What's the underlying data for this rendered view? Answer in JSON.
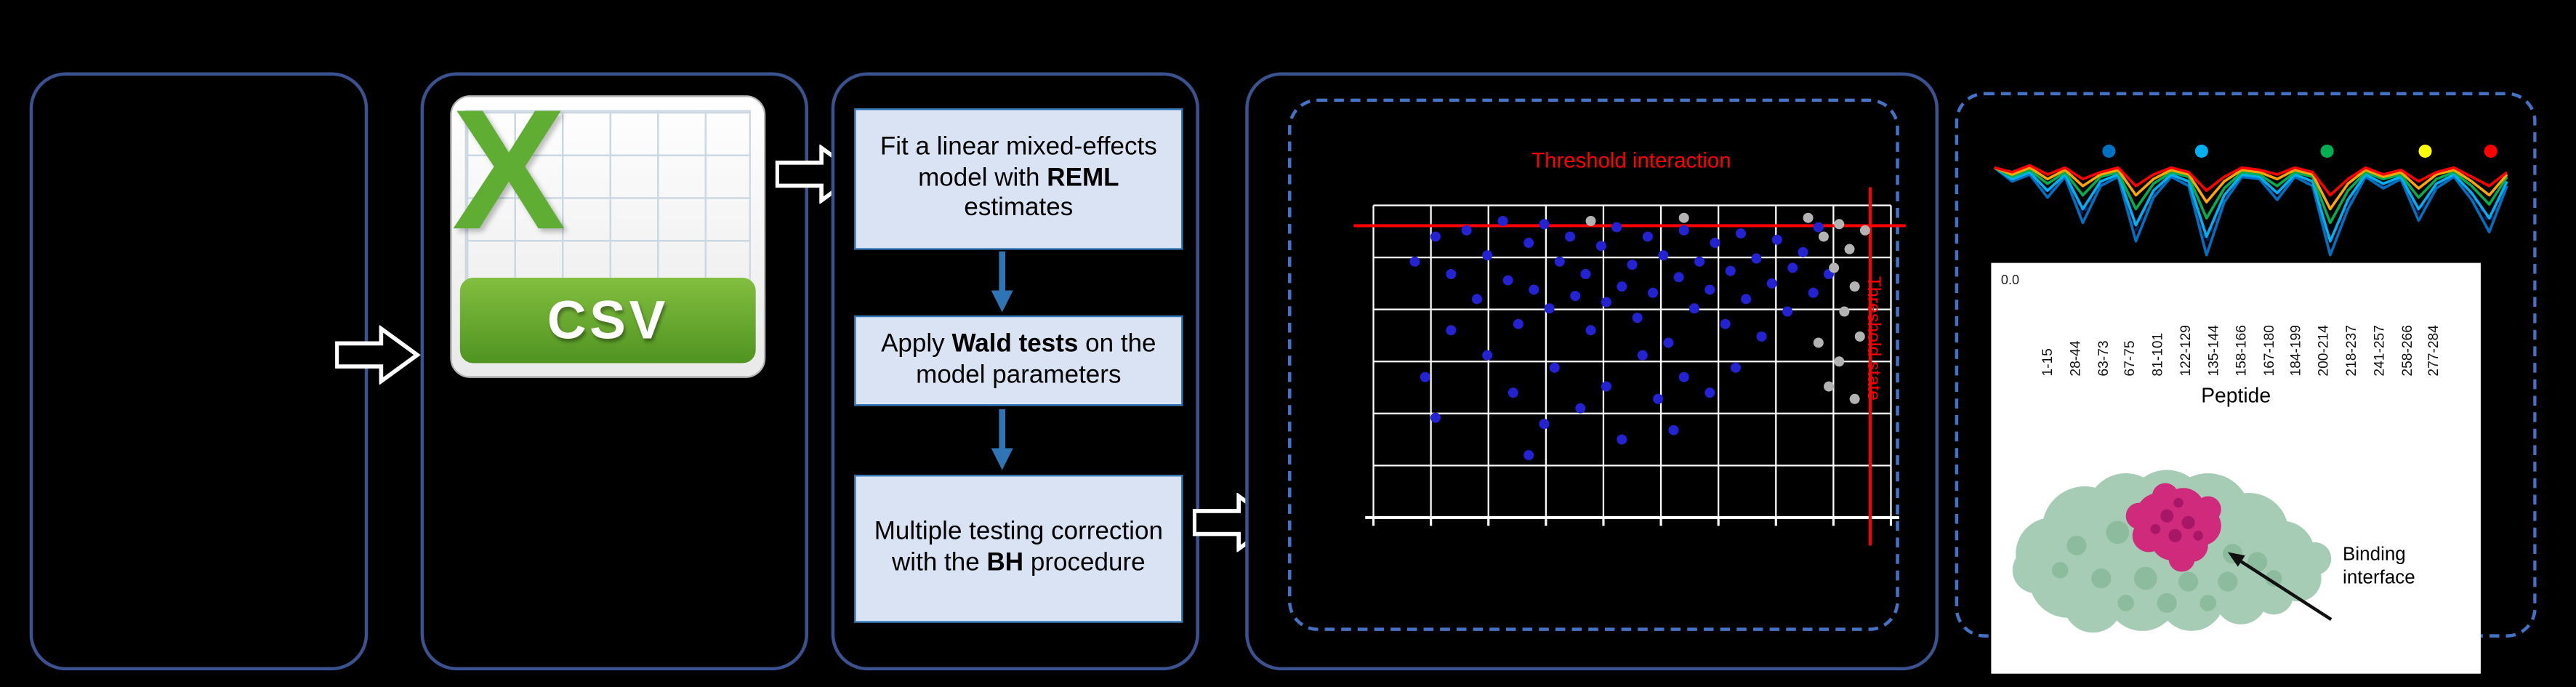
{
  "csv": {
    "letter": "X",
    "banner": "CSV"
  },
  "steps": {
    "box1": {
      "pre": "Fit a linear mixed-effects model with ",
      "bold": "REML",
      "post": " estimates"
    },
    "box2": {
      "pre": "Apply ",
      "bold": "Wald tests",
      "post": " on the model parameters"
    },
    "box3": {
      "pre": "Multiple testing correction with the ",
      "bold": "BH",
      "post": " procedure"
    }
  },
  "protein": {
    "annotation": "Binding interface"
  },
  "colors": {
    "panel_border": "#3a5390",
    "dashed_border": "#4472c4",
    "step_fill": "#dae3f3",
    "step_border": "#2e75b6",
    "threshold": "#ff0000",
    "significant_point": "#2323d4",
    "nonsignificant_point": "#b3b3b3"
  },
  "chart_data": [
    {
      "type": "scatter",
      "title": "Threshold interaction",
      "side_label": "Threshold state",
      "grid": {
        "cols": 10,
        "rows": 7,
        "grid_on": true
      },
      "thresholds": {
        "interaction_y": 0.065,
        "state_x": 0.96
      },
      "series": [
        {
          "name": "significant-peptides",
          "color": "#2323d4",
          "points": [
            [
              0.08,
              0.18
            ],
            [
              0.12,
              0.1
            ],
            [
              0.15,
              0.22
            ],
            [
              0.18,
              0.08
            ],
            [
              0.2,
              0.3
            ],
            [
              0.22,
              0.16
            ],
            [
              0.25,
              0.05
            ],
            [
              0.26,
              0.24
            ],
            [
              0.28,
              0.38
            ],
            [
              0.3,
              0.12
            ],
            [
              0.31,
              0.27
            ],
            [
              0.33,
              0.06
            ],
            [
              0.34,
              0.33
            ],
            [
              0.36,
              0.18
            ],
            [
              0.38,
              0.1
            ],
            [
              0.39,
              0.29
            ],
            [
              0.41,
              0.22
            ],
            [
              0.42,
              0.4
            ],
            [
              0.44,
              0.13
            ],
            [
              0.45,
              0.31
            ],
            [
              0.47,
              0.07
            ],
            [
              0.48,
              0.26
            ],
            [
              0.5,
              0.19
            ],
            [
              0.51,
              0.36
            ],
            [
              0.53,
              0.1
            ],
            [
              0.54,
              0.28
            ],
            [
              0.56,
              0.16
            ],
            [
              0.57,
              0.44
            ],
            [
              0.59,
              0.23
            ],
            [
              0.6,
              0.08
            ],
            [
              0.62,
              0.33
            ],
            [
              0.63,
              0.18
            ],
            [
              0.65,
              0.27
            ],
            [
              0.66,
              0.12
            ],
            [
              0.68,
              0.38
            ],
            [
              0.69,
              0.21
            ],
            [
              0.71,
              0.09
            ],
            [
              0.72,
              0.3
            ],
            [
              0.74,
              0.17
            ],
            [
              0.75,
              0.42
            ],
            [
              0.77,
              0.25
            ],
            [
              0.78,
              0.11
            ],
            [
              0.8,
              0.34
            ],
            [
              0.81,
              0.2
            ],
            [
              0.83,
              0.15
            ],
            [
              0.85,
              0.28
            ],
            [
              0.86,
              0.07
            ],
            [
              0.88,
              0.22
            ],
            [
              0.1,
              0.55
            ],
            [
              0.27,
              0.6
            ],
            [
              0.35,
              0.52
            ],
            [
              0.45,
              0.58
            ],
            [
              0.55,
              0.62
            ],
            [
              0.33,
              0.7
            ],
            [
              0.48,
              0.75
            ],
            [
              0.6,
              0.55
            ],
            [
              0.15,
              0.4
            ],
            [
              0.22,
              0.48
            ],
            [
              0.52,
              0.48
            ],
            [
              0.7,
              0.52
            ],
            [
              0.4,
              0.65
            ],
            [
              0.65,
              0.6
            ],
            [
              0.12,
              0.68
            ],
            [
              0.3,
              0.8
            ],
            [
              0.58,
              0.72
            ]
          ]
        },
        {
          "name": "non-significant-peptides",
          "color": "#b3b3b3",
          "points": [
            [
              0.84,
              0.04
            ],
            [
              0.87,
              0.1
            ],
            [
              0.9,
              0.06
            ],
            [
              0.92,
              0.14
            ],
            [
              0.89,
              0.2
            ],
            [
              0.93,
              0.26
            ],
            [
              0.91,
              0.34
            ],
            [
              0.94,
              0.42
            ],
            [
              0.9,
              0.5
            ],
            [
              0.88,
              0.58
            ],
            [
              0.95,
              0.08
            ],
            [
              0.6,
              0.04
            ],
            [
              0.42,
              0.05
            ],
            [
              0.86,
              0.44
            ],
            [
              0.93,
              0.62
            ]
          ]
        }
      ]
    },
    {
      "type": "line",
      "xlabel": "Peptide",
      "ytick_label": "0.0",
      "categories": [
        "1-15",
        "28-44",
        "63-73",
        "67-75",
        "81-101",
        "122-129",
        "135-144",
        "158-166",
        "167-180",
        "184-199",
        "200-214",
        "218-237",
        "241-257",
        "258-266",
        "277-284"
      ],
      "legend_dots": [
        {
          "x": 0.24,
          "color": "#0070C0"
        },
        {
          "x": 0.41,
          "color": "#00B0F0"
        },
        {
          "x": 0.64,
          "color": "#00B050"
        },
        {
          "x": 0.82,
          "color": "#FFFF00"
        },
        {
          "x": 0.94,
          "color": "#FF0000"
        }
      ],
      "series": [
        {
          "name": "navy-dotted",
          "color": "#002060",
          "dash": "3 3",
          "values": [
            0,
            -0.51,
            -0.26,
            -1.11,
            -0.34,
            -2.04,
            -0.68,
            -0.34,
            -2.72,
            -1.11,
            -0.34,
            -0.68,
            -3.23,
            -1.28,
            -0.34,
            -0.43,
            -1.19,
            -0.34,
            -0.68,
            -3.23,
            -1.53,
            -0.34,
            -0.77,
            -0.43,
            -1.96,
            -0.77,
            -0.34,
            -1.19,
            -2.38,
            -0.68
          ]
        },
        {
          "name": "blue",
          "color": "#0070C0",
          "dash": "",
          "values": [
            0,
            -0.6,
            -0.3,
            -1.3,
            -0.4,
            -2.4,
            -0.8,
            -0.4,
            -3.2,
            -1.3,
            -0.4,
            -0.8,
            -3.8,
            -1.5,
            -0.4,
            -0.5,
            -1.4,
            -0.4,
            -0.8,
            -3.8,
            -1.8,
            -0.4,
            -0.9,
            -0.5,
            -2.3,
            -0.9,
            -0.4,
            -1.4,
            -2.8,
            -0.8
          ]
        },
        {
          "name": "cyan",
          "color": "#00B0F0",
          "dash": "",
          "values": [
            0,
            -0.5,
            -0.2,
            -1.0,
            -0.3,
            -1.8,
            -0.6,
            -0.3,
            -2.5,
            -1.0,
            -0.3,
            -0.6,
            -3.0,
            -1.2,
            -0.3,
            -0.4,
            -1.1,
            -0.3,
            -0.6,
            -3.2,
            -1.4,
            -0.3,
            -0.7,
            -0.4,
            -1.8,
            -0.7,
            -0.3,
            -1.1,
            -2.2,
            -0.6
          ]
        },
        {
          "name": "green",
          "color": "#00B050",
          "dash": "",
          "values": [
            0,
            -0.4,
            -0.1,
            -0.7,
            -0.2,
            -1.2,
            -0.4,
            -0.2,
            -1.8,
            -0.7,
            -0.2,
            -0.4,
            -2.2,
            -0.9,
            -0.2,
            -0.3,
            -0.8,
            -0.2,
            -0.4,
            -2.4,
            -1.0,
            -0.2,
            -0.5,
            -0.3,
            -1.3,
            -0.5,
            -0.2,
            -0.8,
            -1.6,
            -0.4
          ]
        },
        {
          "name": "orange",
          "color": "#FFA500",
          "dash": "",
          "values": [
            0,
            -0.3,
            0,
            -0.5,
            -0.1,
            -0.8,
            -0.3,
            -0.1,
            -1.2,
            -0.5,
            -0.1,
            -0.3,
            -1.5,
            -0.6,
            -0.1,
            -0.2,
            -0.5,
            -0.1,
            -0.3,
            -1.8,
            -0.7,
            -0.1,
            -0.4,
            -0.2,
            -0.9,
            -0.3,
            -0.1,
            -0.6,
            -1.2,
            -0.3
          ]
        },
        {
          "name": "red",
          "color": "#FF0000",
          "dash": "",
          "values": [
            0,
            -0.2,
            0.1,
            -0.3,
            0,
            -0.5,
            -0.2,
            0,
            -0.8,
            -0.3,
            0,
            -0.2,
            -1.0,
            -0.4,
            0,
            -0.1,
            -0.3,
            0,
            -0.2,
            -1.2,
            -0.5,
            0,
            -0.3,
            -0.1,
            -0.6,
            -0.2,
            0,
            -0.4,
            -0.8,
            -0.2
          ]
        }
      ]
    }
  ]
}
